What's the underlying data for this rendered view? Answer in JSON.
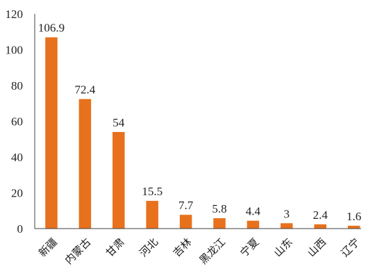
{
  "chart_data": {
    "type": "bar",
    "categories": [
      "新疆",
      "内蒙古",
      "甘肃",
      "河北",
      "吉林",
      "黑龙江",
      "宁夏",
      "山东",
      "山西",
      "辽宁"
    ],
    "values": [
      106.9,
      72.4,
      54,
      15.5,
      7.7,
      5.8,
      4.4,
      3,
      2.4,
      1.6
    ],
    "data_labels": [
      "106.9",
      "72.4",
      "54",
      "15.5",
      "7.7",
      "5.8",
      "4.4",
      "3",
      "2.4",
      "1.6"
    ],
    "y_ticks": [
      "0",
      "20",
      "40",
      "60",
      "80",
      "100",
      "120"
    ],
    "ylim": [
      0,
      120
    ],
    "title": "",
    "xlabel": "",
    "ylabel": "",
    "grid": false,
    "bar_color": "#e8711d"
  }
}
